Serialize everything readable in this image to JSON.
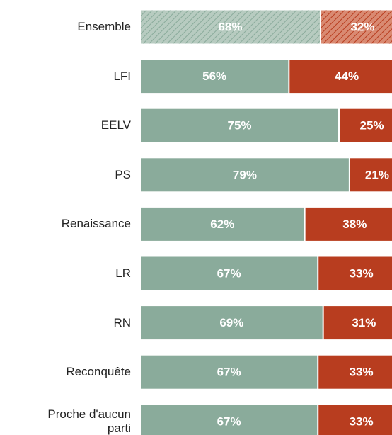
{
  "chart_data": {
    "type": "stacked-bar-horizontal",
    "categories": [
      "Ensemble",
      "LFI",
      "EELV",
      "PS",
      "Renaissance",
      "LR",
      "RN",
      "Reconquête",
      "Proche d'aucun parti"
    ],
    "series": [
      {
        "color": "#8aab9b",
        "values": [
          68,
          56,
          75,
          79,
          62,
          67,
          69,
          67,
          67
        ],
        "value_labels": [
          "68%",
          "56%",
          "75%",
          "79%",
          "62%",
          "67%",
          "69%",
          "67%",
          "67%"
        ]
      },
      {
        "color": "#b83d1f",
        "values": [
          32,
          44,
          25,
          21,
          38,
          33,
          31,
          33,
          33
        ],
        "value_labels": [
          "32%",
          "44%",
          "25%",
          "21%",
          "38%",
          "33%",
          "31%",
          "33%",
          "33%"
        ]
      }
    ],
    "xlim": [
      0,
      100
    ],
    "hatched_index": 0
  }
}
